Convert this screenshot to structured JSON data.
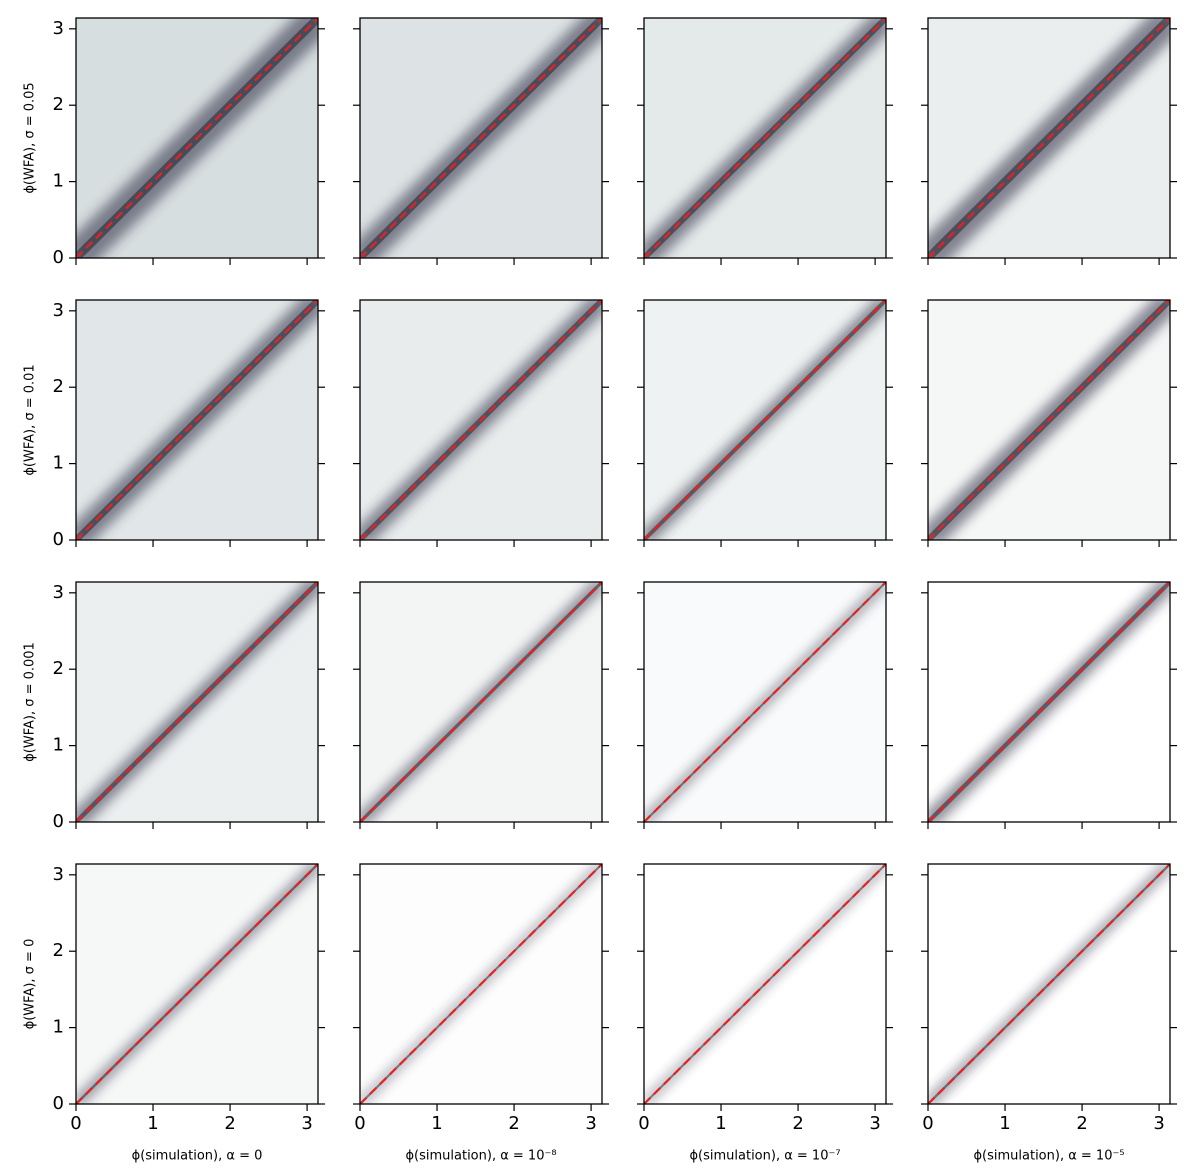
{
  "chart_data": [
    {
      "type": "hist2d",
      "ylabel": "ϕ(WFA), σ = 0.05",
      "xlim": [
        0,
        3.14159
      ],
      "ylim": [
        0,
        3.14159
      ],
      "xticks": [
        0,
        1,
        2,
        3
      ],
      "yticks": [
        0,
        1,
        2,
        3
      ],
      "series": [
        {
          "color": "#e8211f",
          "x": [
            0,
            3.14159
          ],
          "y": [
            0,
            3.14159
          ]
        }
      ]
    },
    {
      "type": "hist2d",
      "xlim": [
        0,
        3.14159
      ],
      "ylim": [
        0,
        3.14159
      ],
      "xticks": [
        0,
        1,
        2,
        3
      ],
      "yticks": [
        0,
        1,
        2,
        3
      ],
      "series": [
        {
          "color": "#e8211f",
          "x": [
            0,
            3.14159
          ],
          "y": [
            0,
            3.14159
          ]
        }
      ]
    },
    {
      "type": "hist2d",
      "xlim": [
        0,
        3.14159
      ],
      "ylim": [
        0,
        3.14159
      ],
      "xticks": [
        0,
        1,
        2,
        3
      ],
      "yticks": [
        0,
        1,
        2,
        3
      ],
      "series": [
        {
          "color": "#e8211f",
          "x": [
            0,
            3.14159
          ],
          "y": [
            0,
            3.14159
          ]
        }
      ]
    },
    {
      "type": "hist2d",
      "xlim": [
        0,
        3.14159
      ],
      "ylim": [
        0,
        3.14159
      ],
      "xticks": [
        0,
        1,
        2,
        3
      ],
      "yticks": [
        0,
        1,
        2,
        3
      ],
      "series": [
        {
          "color": "#e8211f",
          "x": [
            0,
            3.14159
          ],
          "y": [
            0,
            3.14159
          ]
        }
      ]
    },
    {
      "type": "hist2d",
      "ylabel": "ϕ(WFA), σ = 0.01",
      "xlim": [
        0,
        3.14159
      ],
      "ylim": [
        0,
        3.14159
      ],
      "xticks": [
        0,
        1,
        2,
        3
      ],
      "yticks": [
        0,
        1,
        2,
        3
      ],
      "series": [
        {
          "color": "#e8211f",
          "x": [
            0,
            3.14159
          ],
          "y": [
            0,
            3.14159
          ]
        }
      ]
    },
    {
      "type": "hist2d",
      "xlim": [
        0,
        3.14159
      ],
      "ylim": [
        0,
        3.14159
      ],
      "xticks": [
        0,
        1,
        2,
        3
      ],
      "yticks": [
        0,
        1,
        2,
        3
      ],
      "series": [
        {
          "color": "#e8211f",
          "x": [
            0,
            3.14159
          ],
          "y": [
            0,
            3.14159
          ]
        }
      ]
    },
    {
      "type": "hist2d",
      "xlim": [
        0,
        3.14159
      ],
      "ylim": [
        0,
        3.14159
      ],
      "xticks": [
        0,
        1,
        2,
        3
      ],
      "yticks": [
        0,
        1,
        2,
        3
      ],
      "series": [
        {
          "color": "#e8211f",
          "x": [
            0,
            3.14159
          ],
          "y": [
            0,
            3.14159
          ]
        }
      ]
    },
    {
      "type": "hist2d",
      "xlim": [
        0,
        3.14159
      ],
      "ylim": [
        0,
        3.14159
      ],
      "xticks": [
        0,
        1,
        2,
        3
      ],
      "yticks": [
        0,
        1,
        2,
        3
      ],
      "series": [
        {
          "color": "#e8211f",
          "x": [
            0,
            3.14159
          ],
          "y": [
            0,
            3.14159
          ]
        }
      ]
    },
    {
      "type": "hist2d",
      "ylabel": "ϕ(WFA), σ = 0.001",
      "xlim": [
        0,
        3.14159
      ],
      "ylim": [
        0,
        3.14159
      ],
      "xticks": [
        0,
        1,
        2,
        3
      ],
      "yticks": [
        0,
        1,
        2,
        3
      ],
      "series": [
        {
          "color": "#e8211f",
          "x": [
            0,
            3.14159
          ],
          "y": [
            0,
            3.14159
          ]
        }
      ]
    },
    {
      "type": "hist2d",
      "xlim": [
        0,
        3.14159
      ],
      "ylim": [
        0,
        3.14159
      ],
      "xticks": [
        0,
        1,
        2,
        3
      ],
      "yticks": [
        0,
        1,
        2,
        3
      ],
      "series": [
        {
          "color": "#e8211f",
          "x": [
            0,
            3.14159
          ],
          "y": [
            0,
            3.14159
          ]
        }
      ]
    },
    {
      "type": "hist2d",
      "xlim": [
        0,
        3.14159
      ],
      "ylim": [
        0,
        3.14159
      ],
      "xticks": [
        0,
        1,
        2,
        3
      ],
      "yticks": [
        0,
        1,
        2,
        3
      ],
      "series": [
        {
          "color": "#e8211f",
          "x": [
            0,
            3.14159
          ],
          "y": [
            0,
            3.14159
          ]
        }
      ]
    },
    {
      "type": "hist2d",
      "xlim": [
        0,
        3.14159
      ],
      "ylim": [
        0,
        3.14159
      ],
      "xticks": [
        0,
        1,
        2,
        3
      ],
      "yticks": [
        0,
        1,
        2,
        3
      ],
      "series": [
        {
          "color": "#e8211f",
          "x": [
            0,
            3.14159
          ],
          "y": [
            0,
            3.14159
          ]
        }
      ]
    },
    {
      "type": "hist2d",
      "ylabel": "ϕ(WFA), σ = 0",
      "xlabel": "ϕ(simulation), α = 0",
      "xlim": [
        0,
        3.14159
      ],
      "ylim": [
        0,
        3.14159
      ],
      "xticks": [
        0,
        1,
        2,
        3
      ],
      "yticks": [
        0,
        1,
        2,
        3
      ],
      "series": [
        {
          "color": "#e8211f",
          "x": [
            0,
            3.14159
          ],
          "y": [
            0,
            3.14159
          ]
        }
      ]
    },
    {
      "type": "hist2d",
      "xlabel": "ϕ(simulation), α = 10⁻⁸",
      "xlim": [
        0,
        3.14159
      ],
      "ylim": [
        0,
        3.14159
      ],
      "xticks": [
        0,
        1,
        2,
        3
      ],
      "yticks": [
        0,
        1,
        2,
        3
      ],
      "series": [
        {
          "color": "#e8211f",
          "x": [
            0,
            3.14159
          ],
          "y": [
            0,
            3.14159
          ]
        }
      ]
    },
    {
      "type": "hist2d",
      "xlabel": "ϕ(simulation), α = 10⁻⁷",
      "xlim": [
        0,
        3.14159
      ],
      "ylim": [
        0,
        3.14159
      ],
      "xticks": [
        0,
        1,
        2,
        3
      ],
      "yticks": [
        0,
        1,
        2,
        3
      ],
      "series": [
        {
          "color": "#e8211f",
          "x": [
            0,
            3.14159
          ],
          "y": [
            0,
            3.14159
          ]
        }
      ]
    },
    {
      "type": "hist2d",
      "xlabel": "ϕ(simulation), α = 10⁻⁵",
      "xlim": [
        0,
        3.14159
      ],
      "ylim": [
        0,
        3.14159
      ],
      "xticks": [
        0,
        1,
        2,
        3
      ],
      "yticks": [
        0,
        1,
        2,
        3
      ],
      "series": [
        {
          "color": "#e8211f",
          "x": [
            0,
            3.14159
          ],
          "y": [
            0,
            3.14159
          ]
        }
      ]
    }
  ]
}
